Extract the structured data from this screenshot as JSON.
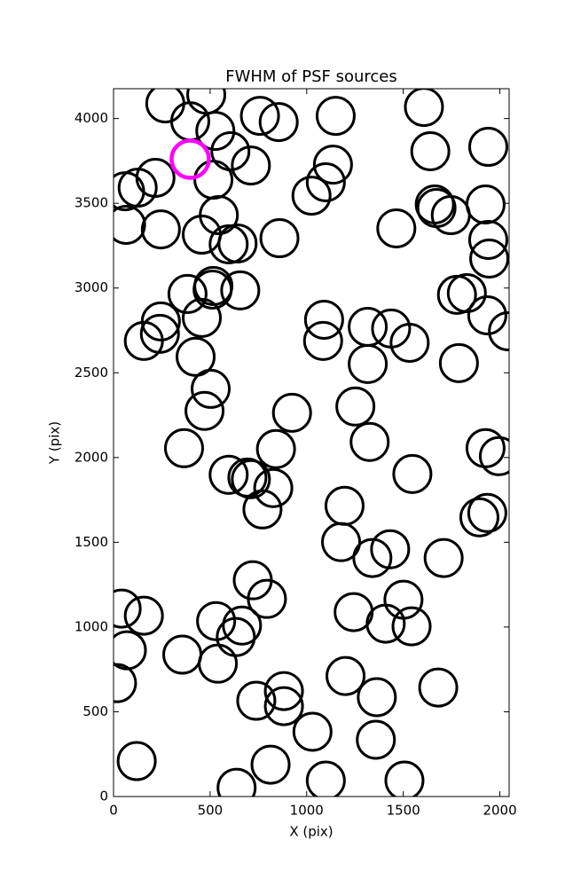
{
  "chart_data": {
    "type": "scatter",
    "title": "FWHM of PSF sources",
    "x_label": "X (pix)",
    "y_label": "Y (pix)",
    "xlim": [
      0,
      2048
    ],
    "ylim": [
      0,
      4176
    ],
    "xticks": [
      0,
      500,
      1000,
      1500,
      2000
    ],
    "yticks": [
      0,
      500,
      1000,
      1500,
      2000,
      2500,
      3000,
      3500,
      4000
    ],
    "series": [
      {
        "color": "#000000",
        "x": [
          268,
          480,
          397,
          527,
          758,
          855,
          1150,
          1607,
          605,
          711,
          1640,
          1940,
          217,
          125,
          60,
          65,
          517,
          1099,
          1136,
          1025,
          1464,
          1663,
          1672,
          1746,
          1926,
          1940,
          1945,
          245,
          457,
          545,
          596,
          642,
          859,
          383,
          513,
          517,
          656,
          245,
          157,
          240,
          457,
          425,
          503,
          471,
          365,
          1090,
          1085,
          1316,
          1437,
          1533,
          1316,
          1778,
          1829,
          1935,
          2042,
          1788,
          924,
          1252,
          1326,
          841,
          1547,
          1926,
          1995,
          596,
          693,
          711,
          827,
          771,
          1196,
          1178,
          1340,
          1432,
          1894,
          1935,
          1709,
          42,
          157,
          69,
          18,
          356,
          531,
          540,
          633,
          665,
          721,
          794,
          1243,
          1409,
          1501,
          1543,
          1201,
          1363,
          739,
          882,
          882,
          1358,
          1030,
          1681,
          120,
          813,
          637,
          1099,
          1506
        ],
        "values": [
          4089,
          4141,
          3984,
          3927,
          4016,
          3979,
          4016,
          4068,
          3807,
          3723,
          3807,
          3833,
          3650,
          3592,
          3571,
          3373,
          3639,
          3624,
          3728,
          3545,
          3352,
          3493,
          3472,
          3430,
          3493,
          3284,
          3174,
          3346,
          3315,
          3430,
          3258,
          3263,
          3294,
          2965,
          2991,
          3012,
          2986,
          2803,
          2688,
          2730,
          2824,
          2594,
          2405,
          2275,
          2055,
          2813,
          2688,
          2771,
          2761,
          2677,
          2552,
          2960,
          2970,
          2839,
          2745,
          2557,
          2264,
          2301,
          2092,
          2050,
          1903,
          2055,
          2008,
          1898,
          1882,
          1872,
          1820,
          1694,
          1715,
          1501,
          1407,
          1459,
          1647,
          1673,
          1407,
          1109,
          1067,
          863,
          669,
          837,
          1035,
          784,
          941,
          1009,
          1276,
          1166,
          1088,
          1020,
          1161,
          1004,
          711,
          586,
          565,
          533,
          622,
          335,
          382,
          643,
          209,
          188,
          52,
          94,
          94
        ]
      },
      {
        "color": "#ff00ff",
        "x": [
          397
        ],
        "values": [
          3760
        ]
      }
    ]
  }
}
